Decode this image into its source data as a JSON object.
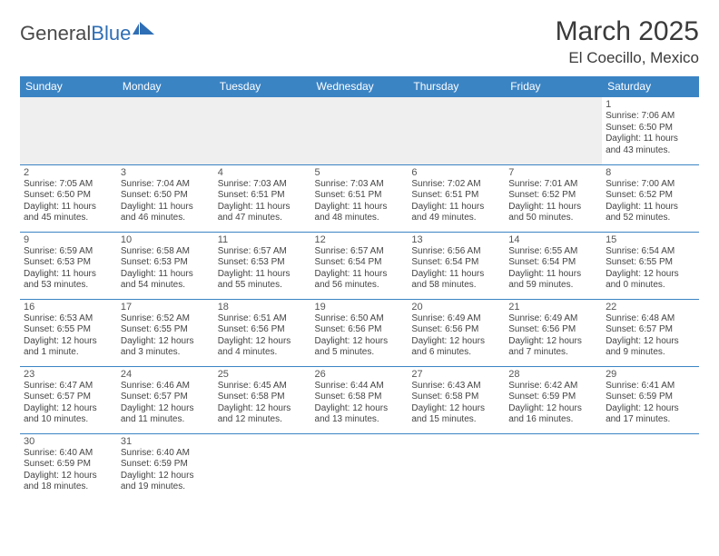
{
  "brand": {
    "part1": "General",
    "part2": "Blue"
  },
  "title": "March 2025",
  "location": "El Coecillo, Mexico",
  "colors": {
    "header_bg": "#3b84c4",
    "header_text": "#ffffff",
    "brand_blue": "#2e6eb5",
    "rule": "#3b84c4",
    "empty_bg": "#efefef"
  },
  "dayNames": [
    "Sunday",
    "Monday",
    "Tuesday",
    "Wednesday",
    "Thursday",
    "Friday",
    "Saturday"
  ],
  "weeks": [
    [
      null,
      null,
      null,
      null,
      null,
      null,
      {
        "n": "1",
        "sr": "Sunrise: 7:06 AM",
        "ss": "Sunset: 6:50 PM",
        "dl": "Daylight: 11 hours and 43 minutes."
      }
    ],
    [
      {
        "n": "2",
        "sr": "Sunrise: 7:05 AM",
        "ss": "Sunset: 6:50 PM",
        "dl": "Daylight: 11 hours and 45 minutes."
      },
      {
        "n": "3",
        "sr": "Sunrise: 7:04 AM",
        "ss": "Sunset: 6:50 PM",
        "dl": "Daylight: 11 hours and 46 minutes."
      },
      {
        "n": "4",
        "sr": "Sunrise: 7:03 AM",
        "ss": "Sunset: 6:51 PM",
        "dl": "Daylight: 11 hours and 47 minutes."
      },
      {
        "n": "5",
        "sr": "Sunrise: 7:03 AM",
        "ss": "Sunset: 6:51 PM",
        "dl": "Daylight: 11 hours and 48 minutes."
      },
      {
        "n": "6",
        "sr": "Sunrise: 7:02 AM",
        "ss": "Sunset: 6:51 PM",
        "dl": "Daylight: 11 hours and 49 minutes."
      },
      {
        "n": "7",
        "sr": "Sunrise: 7:01 AM",
        "ss": "Sunset: 6:52 PM",
        "dl": "Daylight: 11 hours and 50 minutes."
      },
      {
        "n": "8",
        "sr": "Sunrise: 7:00 AM",
        "ss": "Sunset: 6:52 PM",
        "dl": "Daylight: 11 hours and 52 minutes."
      }
    ],
    [
      {
        "n": "9",
        "sr": "Sunrise: 6:59 AM",
        "ss": "Sunset: 6:53 PM",
        "dl": "Daylight: 11 hours and 53 minutes."
      },
      {
        "n": "10",
        "sr": "Sunrise: 6:58 AM",
        "ss": "Sunset: 6:53 PM",
        "dl": "Daylight: 11 hours and 54 minutes."
      },
      {
        "n": "11",
        "sr": "Sunrise: 6:57 AM",
        "ss": "Sunset: 6:53 PM",
        "dl": "Daylight: 11 hours and 55 minutes."
      },
      {
        "n": "12",
        "sr": "Sunrise: 6:57 AM",
        "ss": "Sunset: 6:54 PM",
        "dl": "Daylight: 11 hours and 56 minutes."
      },
      {
        "n": "13",
        "sr": "Sunrise: 6:56 AM",
        "ss": "Sunset: 6:54 PM",
        "dl": "Daylight: 11 hours and 58 minutes."
      },
      {
        "n": "14",
        "sr": "Sunrise: 6:55 AM",
        "ss": "Sunset: 6:54 PM",
        "dl": "Daylight: 11 hours and 59 minutes."
      },
      {
        "n": "15",
        "sr": "Sunrise: 6:54 AM",
        "ss": "Sunset: 6:55 PM",
        "dl": "Daylight: 12 hours and 0 minutes."
      }
    ],
    [
      {
        "n": "16",
        "sr": "Sunrise: 6:53 AM",
        "ss": "Sunset: 6:55 PM",
        "dl": "Daylight: 12 hours and 1 minute."
      },
      {
        "n": "17",
        "sr": "Sunrise: 6:52 AM",
        "ss": "Sunset: 6:55 PM",
        "dl": "Daylight: 12 hours and 3 minutes."
      },
      {
        "n": "18",
        "sr": "Sunrise: 6:51 AM",
        "ss": "Sunset: 6:56 PM",
        "dl": "Daylight: 12 hours and 4 minutes."
      },
      {
        "n": "19",
        "sr": "Sunrise: 6:50 AM",
        "ss": "Sunset: 6:56 PM",
        "dl": "Daylight: 12 hours and 5 minutes."
      },
      {
        "n": "20",
        "sr": "Sunrise: 6:49 AM",
        "ss": "Sunset: 6:56 PM",
        "dl": "Daylight: 12 hours and 6 minutes."
      },
      {
        "n": "21",
        "sr": "Sunrise: 6:49 AM",
        "ss": "Sunset: 6:56 PM",
        "dl": "Daylight: 12 hours and 7 minutes."
      },
      {
        "n": "22",
        "sr": "Sunrise: 6:48 AM",
        "ss": "Sunset: 6:57 PM",
        "dl": "Daylight: 12 hours and 9 minutes."
      }
    ],
    [
      {
        "n": "23",
        "sr": "Sunrise: 6:47 AM",
        "ss": "Sunset: 6:57 PM",
        "dl": "Daylight: 12 hours and 10 minutes."
      },
      {
        "n": "24",
        "sr": "Sunrise: 6:46 AM",
        "ss": "Sunset: 6:57 PM",
        "dl": "Daylight: 12 hours and 11 minutes."
      },
      {
        "n": "25",
        "sr": "Sunrise: 6:45 AM",
        "ss": "Sunset: 6:58 PM",
        "dl": "Daylight: 12 hours and 12 minutes."
      },
      {
        "n": "26",
        "sr": "Sunrise: 6:44 AM",
        "ss": "Sunset: 6:58 PM",
        "dl": "Daylight: 12 hours and 13 minutes."
      },
      {
        "n": "27",
        "sr": "Sunrise: 6:43 AM",
        "ss": "Sunset: 6:58 PM",
        "dl": "Daylight: 12 hours and 15 minutes."
      },
      {
        "n": "28",
        "sr": "Sunrise: 6:42 AM",
        "ss": "Sunset: 6:59 PM",
        "dl": "Daylight: 12 hours and 16 minutes."
      },
      {
        "n": "29",
        "sr": "Sunrise: 6:41 AM",
        "ss": "Sunset: 6:59 PM",
        "dl": "Daylight: 12 hours and 17 minutes."
      }
    ],
    [
      {
        "n": "30",
        "sr": "Sunrise: 6:40 AM",
        "ss": "Sunset: 6:59 PM",
        "dl": "Daylight: 12 hours and 18 minutes."
      },
      {
        "n": "31",
        "sr": "Sunrise: 6:40 AM",
        "ss": "Sunset: 6:59 PM",
        "dl": "Daylight: 12 hours and 19 minutes."
      },
      null,
      null,
      null,
      null,
      null
    ]
  ]
}
